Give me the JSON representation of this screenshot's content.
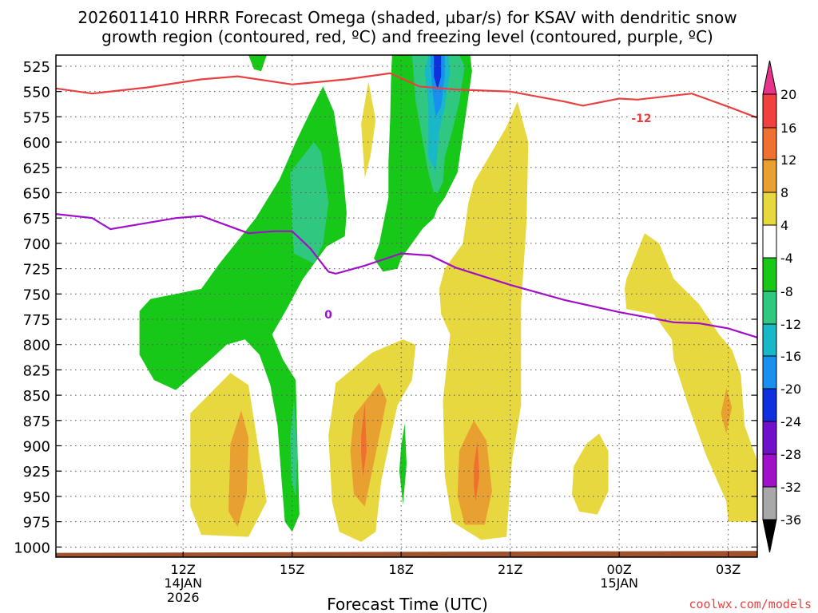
{
  "chart_data": {
    "type": "contour",
    "title_line1": "2026011410 HRRR Forecast Omega (shaded, µbar/s) for KSAV with dendritic snow",
    "title_line2": "growth region (contoured, red, ºC) and freezing level (contoured, purple, ºC)",
    "xlabel": "Forecast Time (UTC)",
    "watermark": "coolwx.com/models",
    "x_hours": [
      8.5,
      27.8
    ],
    "y_pressure_hpa": [
      514,
      1010
    ],
    "y_ticks": [
      "525",
      "550",
      "575",
      "600",
      "625",
      "650",
      "675",
      "700",
      "725",
      "750",
      "775",
      "800",
      "825",
      "850",
      "875",
      "900",
      "925",
      "950",
      "975",
      "1000"
    ],
    "x_ticks": [
      {
        "label": "12Z",
        "hour": 12,
        "sub1": "14JAN",
        "sub2": "2026"
      },
      {
        "label": "15Z",
        "hour": 15,
        "sub1": "",
        "sub2": ""
      },
      {
        "label": "18Z",
        "hour": 18,
        "sub1": "",
        "sub2": ""
      },
      {
        "label": "21Z",
        "hour": 21,
        "sub1": "",
        "sub2": ""
      },
      {
        "label": "00Z",
        "hour": 24,
        "sub1": "15JAN",
        "sub2": ""
      },
      {
        "label": "03Z",
        "hour": 27,
        "sub1": "",
        "sub2": ""
      }
    ],
    "colorbar": {
      "labels": [
        "20",
        "16",
        "12",
        "8",
        "4",
        "-4",
        "-8",
        "-12",
        "-16",
        "-20",
        "-24",
        "-28",
        "-32",
        "-36"
      ],
      "colors": [
        "#e8338b",
        "#f04040",
        "#f07030",
        "#e8a030",
        "#e8d840",
        "#ffffff",
        "#18c818",
        "#30c880",
        "#18b8c8",
        "#1890f0",
        "#1030e0",
        "#7010c8",
        "#a010c8",
        "#a8a8a8",
        "#000000"
      ]
    },
    "contour_labels": {
      "red": "-12",
      "purple": "0"
    },
    "red_line_minus12C": [
      [
        8.5,
        547
      ],
      [
        9.5,
        552
      ],
      [
        11,
        546
      ],
      [
        12.5,
        538
      ],
      [
        13.5,
        535
      ],
      [
        15,
        543
      ],
      [
        16.5,
        538
      ],
      [
        17.7,
        532
      ],
      [
        18.5,
        545
      ],
      [
        19.5,
        548
      ],
      [
        21,
        550
      ],
      [
        22.5,
        560
      ],
      [
        23,
        564
      ],
      [
        24,
        557
      ],
      [
        24.5,
        558
      ],
      [
        26,
        552
      ],
      [
        27,
        565
      ],
      [
        27.8,
        576
      ]
    ],
    "purple_line_0C": [
      [
        8.5,
        671
      ],
      [
        9.5,
        675
      ],
      [
        10,
        686
      ],
      [
        11.8,
        675
      ],
      [
        12.5,
        673
      ],
      [
        13.8,
        690
      ],
      [
        14.5,
        688
      ],
      [
        15,
        688
      ],
      [
        15.5,
        705
      ],
      [
        16,
        728
      ],
      [
        16.2,
        730
      ],
      [
        17,
        722
      ],
      [
        18,
        710
      ],
      [
        18.8,
        712
      ],
      [
        19.5,
        724
      ],
      [
        21,
        741
      ],
      [
        22.5,
        756
      ],
      [
        24,
        768
      ],
      [
        25.5,
        778
      ],
      [
        26.2,
        779
      ],
      [
        27,
        784
      ],
      [
        27.8,
        793
      ]
    ],
    "surface_hpa": 1005,
    "omega_regions": [
      {
        "value": 8,
        "color": "#e8d840",
        "pts": [
          [
            12.2,
            868
          ],
          [
            13.3,
            828
          ],
          [
            13.8,
            840
          ],
          [
            14.3,
            955
          ],
          [
            13.8,
            990
          ],
          [
            12.5,
            988
          ],
          [
            12.2,
            960
          ]
        ]
      },
      {
        "value": 12,
        "color": "#e8a030",
        "pts": [
          [
            13.3,
            898
          ],
          [
            13.6,
            865
          ],
          [
            13.8,
            892
          ],
          [
            13.75,
            948
          ],
          [
            13.5,
            980
          ],
          [
            13.25,
            965
          ]
        ]
      },
      {
        "value": 8,
        "color": "#e8d840",
        "pts": [
          [
            16.2,
            838
          ],
          [
            17.2,
            808
          ],
          [
            18.05,
            795
          ],
          [
            18.4,
            800
          ],
          [
            18.3,
            835
          ],
          [
            17.9,
            860
          ],
          [
            17.45,
            935
          ],
          [
            17.3,
            985
          ],
          [
            16.9,
            995
          ],
          [
            16.3,
            985
          ],
          [
            16.1,
            955
          ],
          [
            16,
            890
          ]
        ]
      },
      {
        "value": 12,
        "color": "#e8a030",
        "pts": [
          [
            16.7,
            870
          ],
          [
            17.4,
            838
          ],
          [
            17.6,
            855
          ],
          [
            17.2,
            925
          ],
          [
            17,
            960
          ],
          [
            16.7,
            948
          ],
          [
            16.6,
            905
          ]
        ]
      },
      {
        "value": 16,
        "color": "#f07030",
        "pts": [
          [
            16.9,
            890
          ],
          [
            17,
            858
          ],
          [
            17.05,
            905
          ],
          [
            16.95,
            930
          ],
          [
            16.9,
            908
          ]
        ]
      },
      {
        "value": 8,
        "color": "#e8d840",
        "pts": [
          [
            16.9,
            582
          ],
          [
            17.1,
            540
          ],
          [
            17.3,
            578
          ],
          [
            17.15,
            615
          ],
          [
            17,
            635
          ]
        ]
      },
      {
        "value": 8,
        "color": "#e8d840",
        "pts": [
          [
            20,
            640
          ],
          [
            20.9,
            585
          ],
          [
            21.2,
            560
          ],
          [
            21.5,
            600
          ],
          [
            21.45,
            680
          ],
          [
            21.3,
            760
          ],
          [
            21.3,
            860
          ],
          [
            21.05,
            915
          ],
          [
            20.9,
            990
          ],
          [
            20.2,
            993
          ],
          [
            19.4,
            975
          ],
          [
            19.2,
            930
          ],
          [
            19.15,
            855
          ],
          [
            19.35,
            790
          ],
          [
            19.1,
            770
          ],
          [
            19.05,
            745
          ],
          [
            19.2,
            725
          ],
          [
            19.7,
            700
          ],
          [
            19.85,
            660
          ]
        ]
      },
      {
        "value": 12,
        "color": "#e8a030",
        "pts": [
          [
            19.6,
            905
          ],
          [
            20.0,
            875
          ],
          [
            20.35,
            895
          ],
          [
            20.5,
            945
          ],
          [
            20.3,
            978
          ],
          [
            19.75,
            978
          ],
          [
            19.55,
            950
          ]
        ]
      },
      {
        "value": 16,
        "color": "#f07030",
        "pts": [
          [
            20,
            920
          ],
          [
            20.1,
            895
          ],
          [
            20.15,
            930
          ],
          [
            20.05,
            955
          ],
          [
            20,
            940
          ]
        ]
      },
      {
        "value": 8,
        "color": "#e8d840",
        "pts": [
          [
            23.1,
            898
          ],
          [
            23.45,
            888
          ],
          [
            23.7,
            905
          ],
          [
            23.7,
            945
          ],
          [
            23.4,
            968
          ],
          [
            22.9,
            965
          ],
          [
            22.7,
            948
          ],
          [
            22.75,
            920
          ]
        ]
      },
      {
        "value": 8,
        "color": "#e8d840",
        "pts": [
          [
            24.2,
            735
          ],
          [
            24.7,
            690
          ],
          [
            25.1,
            700
          ],
          [
            25.5,
            735
          ],
          [
            26.2,
            760
          ],
          [
            26.75,
            790
          ],
          [
            27.1,
            805
          ],
          [
            27.35,
            830
          ],
          [
            27.45,
            880
          ],
          [
            27.8,
            915
          ],
          [
            27.8,
            975
          ],
          [
            27,
            975
          ],
          [
            26.95,
            955
          ],
          [
            26.4,
            910
          ],
          [
            25.9,
            860
          ],
          [
            25.5,
            815
          ],
          [
            25.45,
            795
          ],
          [
            24.95,
            770
          ],
          [
            24.2,
            765
          ],
          [
            24.15,
            745
          ]
        ]
      },
      {
        "value": 12,
        "color": "#e8a030",
        "pts": [
          [
            26.8,
            868
          ],
          [
            26.95,
            843
          ],
          [
            27.1,
            862
          ],
          [
            26.95,
            888
          ]
        ]
      },
      {
        "value": -8,
        "color": "#18c818",
        "pts": [
          [
            10.8,
            767
          ],
          [
            11.1,
            755
          ],
          [
            12.5,
            745
          ],
          [
            13,
            720
          ],
          [
            14,
            675
          ],
          [
            14.65,
            637
          ],
          [
            15.1,
            600
          ],
          [
            15.5,
            570
          ],
          [
            15.85,
            545
          ],
          [
            16.15,
            570
          ],
          [
            16.4,
            630
          ],
          [
            16.5,
            670
          ],
          [
            16.45,
            693
          ],
          [
            15.95,
            703
          ],
          [
            15.3,
            735
          ],
          [
            14.85,
            765
          ],
          [
            14.45,
            790
          ],
          [
            14.75,
            815
          ],
          [
            15.1,
            835
          ],
          [
            15.15,
            905
          ],
          [
            15.2,
            968
          ],
          [
            15,
            985
          ],
          [
            14.8,
            975
          ],
          [
            14.7,
            930
          ],
          [
            14.6,
            880
          ],
          [
            14.4,
            840
          ],
          [
            14.1,
            810
          ],
          [
            13.7,
            795
          ],
          [
            13.2,
            800
          ],
          [
            12.9,
            810
          ],
          [
            11.8,
            845
          ],
          [
            11.2,
            835
          ],
          [
            10.8,
            810
          ]
        ]
      },
      {
        "value": -12,
        "color": "#30c880",
        "pts": [
          [
            14.95,
            630
          ],
          [
            15.6,
            600
          ],
          [
            15.8,
            610
          ],
          [
            16.0,
            660
          ],
          [
            15.85,
            700
          ],
          [
            15.6,
            720
          ],
          [
            15.05,
            710
          ],
          [
            15.0,
            685
          ]
        ]
      },
      {
        "value": -12,
        "color": "#30c880",
        "pts": [
          [
            15.05,
            855
          ],
          [
            15.15,
            908
          ],
          [
            15.1,
            950
          ],
          [
            14.98,
            935
          ],
          [
            14.95,
            890
          ]
        ]
      },
      {
        "value": -8,
        "color": "#18c818",
        "pts": [
          [
            17.75,
            514
          ],
          [
            19.9,
            514
          ],
          [
            19.95,
            530
          ],
          [
            19.75,
            580
          ],
          [
            19.55,
            630
          ],
          [
            19.2,
            655
          ],
          [
            19.0,
            665
          ],
          [
            18.9,
            675
          ],
          [
            18.6,
            685
          ],
          [
            18.3,
            700
          ],
          [
            18.0,
            715
          ],
          [
            17.9,
            725
          ],
          [
            17.5,
            728
          ],
          [
            17.25,
            715
          ],
          [
            17.4,
            700
          ],
          [
            17.65,
            655
          ],
          [
            17.65,
            620
          ],
          [
            17.7,
            575
          ],
          [
            17.72,
            540
          ]
        ]
      },
      {
        "value": -12,
        "color": "#30c880",
        "pts": [
          [
            18.3,
            514
          ],
          [
            19.6,
            514
          ],
          [
            19.75,
            525
          ],
          [
            19.6,
            560
          ],
          [
            19.4,
            590
          ],
          [
            19.2,
            615
          ],
          [
            19.15,
            640
          ],
          [
            19.0,
            650
          ],
          [
            18.9,
            650
          ],
          [
            18.75,
            630
          ],
          [
            18.55,
            590
          ],
          [
            18.4,
            560
          ]
        ]
      },
      {
        "value": -16,
        "color": "#18b8c8",
        "pts": [
          [
            18.75,
            514
          ],
          [
            19.3,
            514
          ],
          [
            19.35,
            530
          ],
          [
            19.2,
            565
          ],
          [
            19.05,
            590
          ],
          [
            18.95,
            630
          ],
          [
            18.75,
            615
          ],
          [
            18.75,
            565
          ],
          [
            18.65,
            530
          ]
        ]
      },
      {
        "value": -20,
        "color": "#1890f0",
        "pts": [
          [
            18.8,
            514
          ],
          [
            19.2,
            514
          ],
          [
            19.2,
            535
          ],
          [
            19.1,
            565
          ],
          [
            18.95,
            575
          ],
          [
            18.85,
            545
          ]
        ]
      },
      {
        "value": -24,
        "color": "#1030e0",
        "pts": [
          [
            18.9,
            514
          ],
          [
            19.1,
            514
          ],
          [
            19.1,
            535
          ],
          [
            19.0,
            548
          ],
          [
            18.9,
            535
          ]
        ]
      },
      {
        "value": -8,
        "color": "#18c818",
        "pts": [
          [
            18.0,
            900
          ],
          [
            18.1,
            878
          ],
          [
            18.15,
            918
          ],
          [
            18.05,
            958
          ],
          [
            17.95,
            925
          ]
        ]
      },
      {
        "value": -8,
        "color": "#18c818",
        "pts": [
          [
            13.8,
            514
          ],
          [
            14.3,
            514
          ],
          [
            14.15,
            530
          ],
          [
            13.95,
            528
          ]
        ]
      }
    ]
  }
}
